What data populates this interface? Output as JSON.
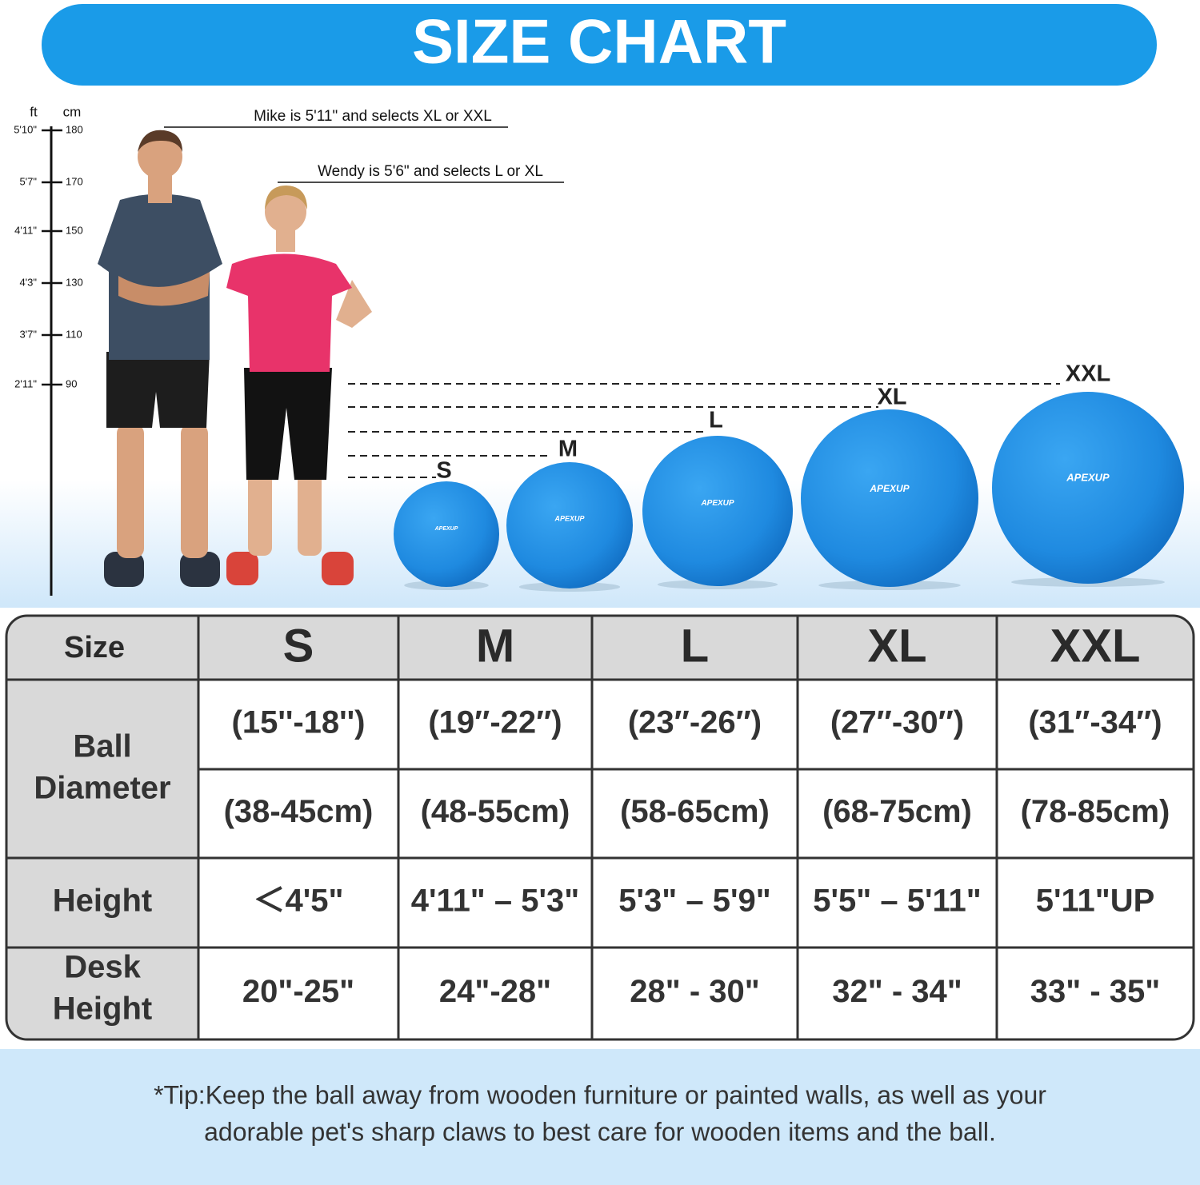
{
  "title": "SIZE CHART",
  "ruler": {
    "ft_unit": "ft",
    "cm_unit": "cm",
    "ticks": [
      {
        "ft": "5'10\"",
        "cm": "180"
      },
      {
        "ft": "5'7\"",
        "cm": "170"
      },
      {
        "ft": "4'11\"",
        "cm": "150"
      },
      {
        "ft": "4'3\"",
        "cm": "130"
      },
      {
        "ft": "3'7\"",
        "cm": "110"
      },
      {
        "ft": "2'11\"",
        "cm": "90"
      }
    ]
  },
  "annotations": [
    "Mike is 5'11\" and selects XL or XXL",
    "Wendy is 5'6\" and selects L or XL"
  ],
  "balls": {
    "brand": "APEXUP",
    "sizes": [
      "S",
      "M",
      "L",
      "XL",
      "XXL"
    ]
  },
  "table": {
    "header": [
      "Size",
      "S",
      "M",
      "L",
      "XL",
      "XXL"
    ],
    "diameter": {
      "label_lines": [
        "Ball",
        "Diameter"
      ],
      "inches": [
        "(15''-18'')",
        "(19″-22″)",
        "(23″-26″)",
        "(27″-30″)",
        "(31″-34″)"
      ],
      "cm": [
        "(38-45cm)",
        "(48-55cm)",
        "(58-65cm)",
        "(68-75cm)",
        "(78-85cm)"
      ]
    },
    "height": {
      "label": "Height",
      "values": [
        "＜4'5\"",
        "4'11\" – 5'3\"",
        "5'3\" – 5'9\"",
        "5'5\" – 5'11\"",
        "5'11\"UP"
      ]
    },
    "desk_height": {
      "label_lines": [
        "Desk",
        "Height"
      ],
      "values": [
        "20\"-25\"",
        "24\"-28\"",
        "28\" - 30\"",
        "32\" - 34\"",
        "33\" - 35\""
      ]
    }
  },
  "tip": [
    "*Tip:Keep the ball away from wooden furniture or painted walls, as well as your",
    "adorable pet's sharp claws to best care for wooden items and the ball."
  ]
}
